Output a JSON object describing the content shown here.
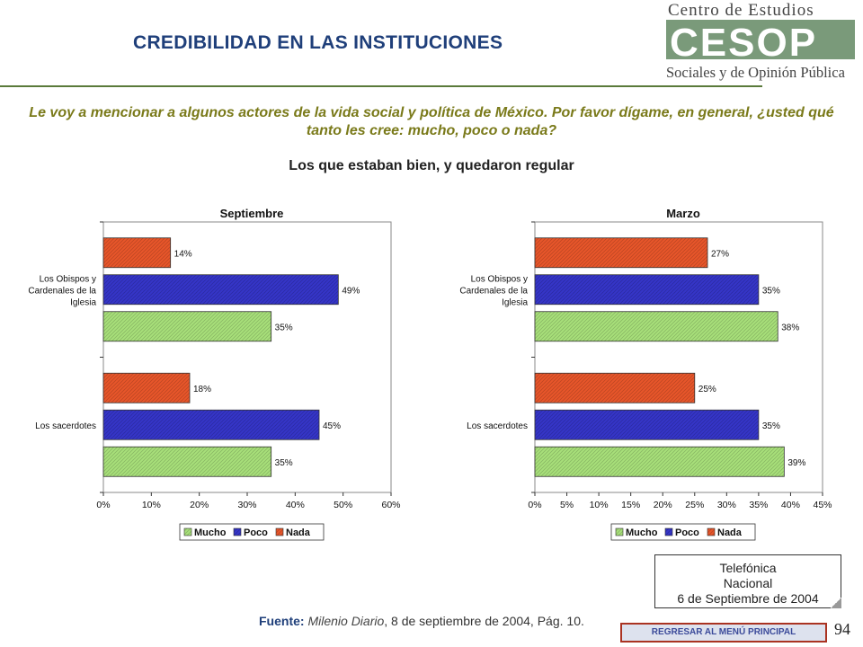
{
  "header": {
    "title": "CREDIBILIDAD EN LAS INSTITUCIONES",
    "logo_line1": "Centro de Estudios",
    "logo_mark": "CESOP",
    "logo_line2": "Sociales y de Opinión Pública"
  },
  "question": "Le voy a mencionar a algunos actores de la vida social y política de México. Por favor dígame, en general, ¿usted qué tanto les cree: mucho, poco o nada?",
  "subtitle": "Los que estaban bien, y quedaron regular",
  "colors": {
    "mucho": "#a8e07a",
    "poco": "#3535c8",
    "nada": "#e8562a",
    "title": "#1f3f7a",
    "question": "#7a7a1a"
  },
  "chart_data": [
    {
      "type": "bar",
      "orientation": "horizontal",
      "title": "Septiembre",
      "categories": [
        "Los Obispos y Cardenales de la Iglesia",
        "Los sacerdotes"
      ],
      "category_lines": [
        [
          "Los Obispos y",
          "Cardenales de la",
          "Iglesia"
        ],
        [
          "Los sacerdotes"
        ]
      ],
      "series": [
        {
          "name": "Mucho",
          "values": [
            35,
            35
          ]
        },
        {
          "name": "Poco",
          "values": [
            49,
            45
          ]
        },
        {
          "name": "Nada",
          "values": [
            14,
            18
          ]
        }
      ],
      "xlim": [
        0,
        60
      ],
      "ticks": [
        0,
        10,
        20,
        30,
        40,
        50,
        60
      ],
      "tick_suffix": "%",
      "legend_position": "bottom"
    },
    {
      "type": "bar",
      "orientation": "horizontal",
      "title": "Marzo",
      "categories": [
        "Los Obispos y Cardenales de la Iglesia",
        "Los sacerdotes"
      ],
      "category_lines": [
        [
          "Los Obispos y",
          "Cardenales de la",
          "Iglesia"
        ],
        [
          "Los sacerdotes"
        ]
      ],
      "series": [
        {
          "name": "Mucho",
          "values": [
            38,
            39
          ]
        },
        {
          "name": "Poco",
          "values": [
            35,
            35
          ]
        },
        {
          "name": "Nada",
          "values": [
            27,
            25
          ]
        }
      ],
      "xlim": [
        0,
        45
      ],
      "ticks": [
        0,
        5,
        10,
        15,
        20,
        25,
        30,
        35,
        40,
        45
      ],
      "tick_suffix": "%",
      "legend_position": "bottom"
    }
  ],
  "source": {
    "label": "Fuente:",
    "publication": "Milenio Diario",
    "rest": ", 8 de septiembre de 2004, Pág. 10."
  },
  "note": {
    "line1": "Telefónica",
    "line2": "Nacional",
    "line3": "6 de Septiembre de 2004"
  },
  "back_button": "REGRESAR AL MENÚ PRINCIPAL",
  "page_number": "94"
}
